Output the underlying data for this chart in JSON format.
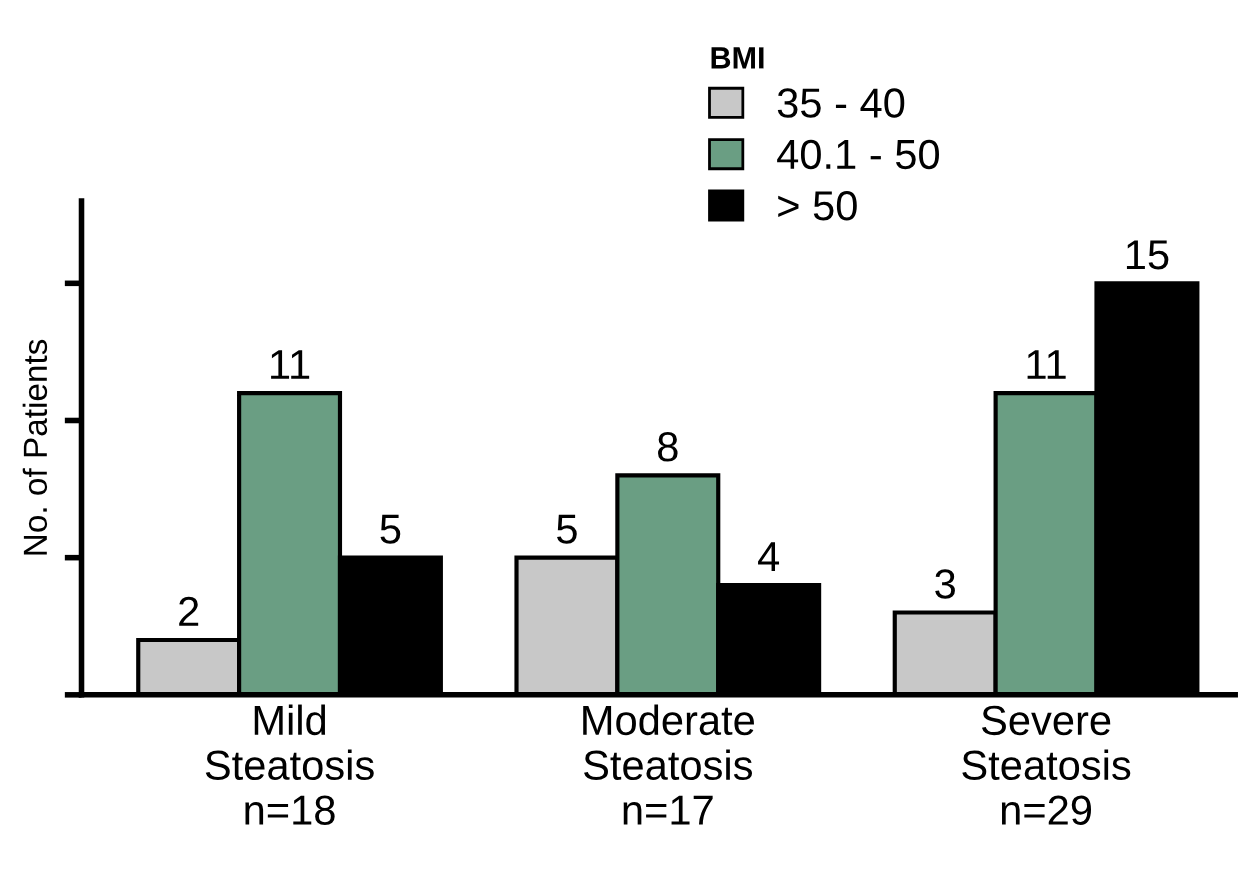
{
  "chart_data": {
    "type": "bar",
    "ylabel": "No. of Patients",
    "legend_title": "BMI",
    "categories": [
      "Mild\nSteatosis\nn=18",
      "Moderate\nSteatosis\nn=17",
      "Severe\nSteatosis\nn=29"
    ],
    "series": [
      {
        "name": "35 - 40",
        "color": "#c8c8c8",
        "values": [
          2,
          5,
          3
        ]
      },
      {
        "name": "40.1 - 50",
        "color": "#6a9e83",
        "values": [
          11,
          8,
          11
        ]
      },
      {
        "name": "> 50",
        "color": "#000000",
        "values": [
          5,
          4,
          15
        ]
      }
    ],
    "ylim": [
      0,
      18
    ],
    "yticks": [
      {
        "value": 0,
        "label": null
      },
      {
        "value": 5,
        "label": null
      },
      {
        "value": 10,
        "label": null
      },
      {
        "value": 15,
        "label": null
      }
    ],
    "tick_labels": "x",
    "data_labels": true,
    "legend": "top right",
    "grid": false
  }
}
